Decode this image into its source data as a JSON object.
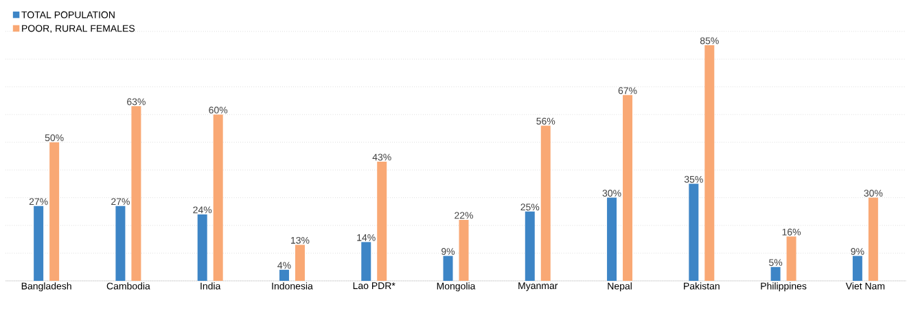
{
  "chart_data": {
    "type": "bar",
    "categories": [
      "Bangladesh",
      "Cambodia",
      "India",
      "Indonesia",
      "Lao  PDR*",
      "Mongolia",
      "Myanmar",
      "Nepal",
      "Pakistan",
      "Philippines",
      "Viet Nam"
    ],
    "series": [
      {
        "name": "TOTAL POPULATION",
        "color": "#3d85c6",
        "values": [
          27,
          27,
          24,
          4,
          14,
          9,
          25,
          30,
          35,
          5,
          9
        ],
        "value_labels": [
          "27%",
          "27%",
          "24%",
          "4%",
          "14%",
          "9%",
          "25%",
          "30%",
          "35%",
          "5%",
          "9%"
        ]
      },
      {
        "name": "POOR, RURAL FEMALES",
        "color": "#f9a874",
        "values": [
          50,
          63,
          60,
          13,
          43,
          22,
          56,
          67,
          85,
          16,
          30
        ],
        "value_labels": [
          "50%",
          "63%",
          "60%",
          "13%",
          "43%",
          "22%",
          "56%",
          "67%",
          "85%",
          "16%",
          "30%"
        ]
      }
    ],
    "grid": "y",
    "legend": "top left",
    "tick_labels": "x"
  }
}
